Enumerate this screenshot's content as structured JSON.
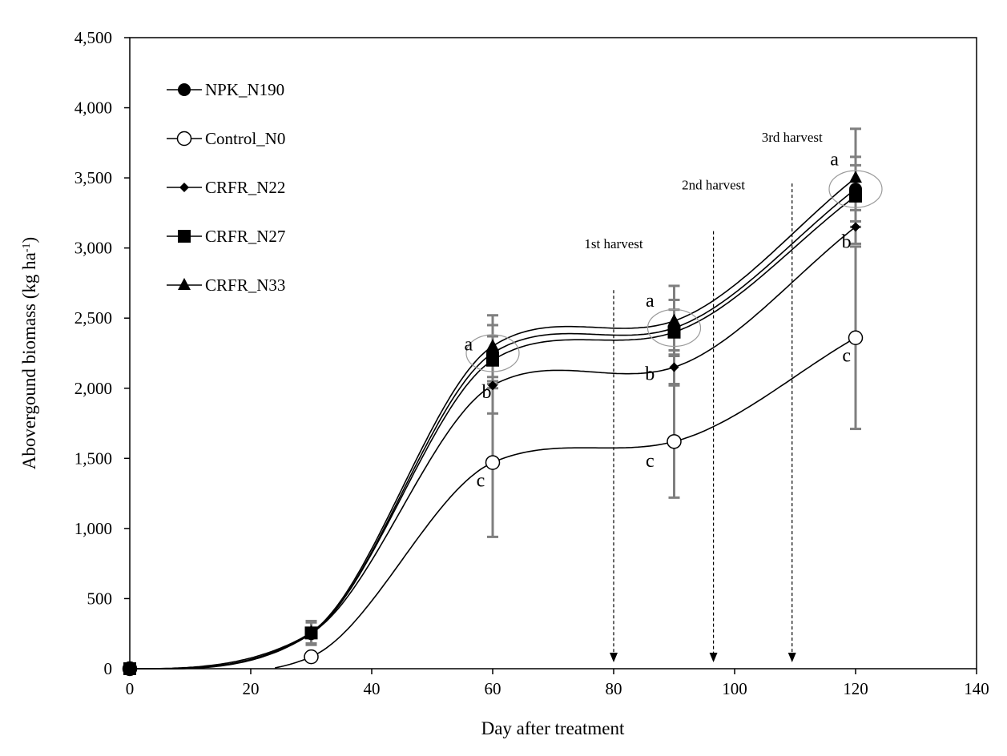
{
  "chart_data": {
    "type": "line",
    "title": "",
    "xlabel": "Day after treatment",
    "ylabel": "Abovergound biomass (kg ha",
    "ylabel_sup": "-1",
    "ylabel_close": ")",
    "xlim": [
      0,
      140
    ],
    "ylim": [
      0,
      4500
    ],
    "xticks": [
      0,
      20,
      40,
      60,
      80,
      100,
      120,
      140
    ],
    "xtick_labels": [
      "0",
      "20",
      "40",
      "60",
      "80",
      "100",
      "120",
      "140"
    ],
    "yticks": [
      0,
      500,
      1000,
      1500,
      2000,
      2500,
      3000,
      3500,
      4000,
      4500
    ],
    "ytick_labels": [
      "0",
      "500",
      "1,000",
      "1,500",
      "2,000",
      "2,500",
      "3,000",
      "3,500",
      "4,000",
      "4,500"
    ],
    "grid": false,
    "legend_position": "top-left",
    "x": [
      0,
      30,
      60,
      90,
      120
    ],
    "series": [
      {
        "name": "NPK_N190",
        "marker": "filled-circle",
        "values": [
          0,
          250,
          2250,
          2430,
          3420
        ],
        "errors": [
          0,
          80,
          200,
          200,
          230
        ]
      },
      {
        "name": "Control_N0",
        "marker": "open-circle",
        "values": [
          0,
          85,
          1470,
          1620,
          2360
        ],
        "errors": [
          0,
          0,
          530,
          400,
          650
        ]
      },
      {
        "name": "CRFR_N22",
        "marker": "small-diamond",
        "values": [
          0,
          255,
          2020,
          2150,
          3150
        ],
        "errors": [
          0,
          0,
          200,
          120,
          120
        ]
      },
      {
        "name": "CRFR_N27",
        "marker": "filled-square",
        "values": [
          0,
          255,
          2200,
          2400,
          3370
        ],
        "errors": [
          0,
          80,
          170,
          160,
          220
        ]
      },
      {
        "name": "CRFR_N33",
        "marker": "filled-triangle",
        "values": [
          0,
          260,
          2300,
          2480,
          3500
        ],
        "errors": [
          0,
          80,
          220,
          250,
          350
        ]
      }
    ],
    "annotations": [
      {
        "text": "a",
        "x": 56,
        "y": 2270
      },
      {
        "text": "b",
        "x": 59,
        "y": 1930
      },
      {
        "text": "c",
        "x": 58,
        "y": 1300
      },
      {
        "text": "a",
        "x": 86,
        "y": 2580
      },
      {
        "text": "b",
        "x": 86,
        "y": 2060
      },
      {
        "text": "c",
        "x": 86,
        "y": 1440
      },
      {
        "text": "a",
        "x": 116.5,
        "y": 3590
      },
      {
        "text": "b",
        "x": 118.5,
        "y": 3000
      },
      {
        "text": "c",
        "x": 118.5,
        "y": 2190
      }
    ],
    "harvest_markers": [
      {
        "label": "1st harvest",
        "x": 80,
        "y_top": 2700
      },
      {
        "label": "2nd harvest",
        "x": 96.5,
        "y_top": 3120
      },
      {
        "label": "3rd harvest",
        "x": 109.5,
        "y_top": 3460
      }
    ],
    "highlight_circles": [
      {
        "x": 60,
        "y": 2250
      },
      {
        "x": 90,
        "y": 2430
      },
      {
        "x": 120,
        "y": 3420
      }
    ]
  }
}
